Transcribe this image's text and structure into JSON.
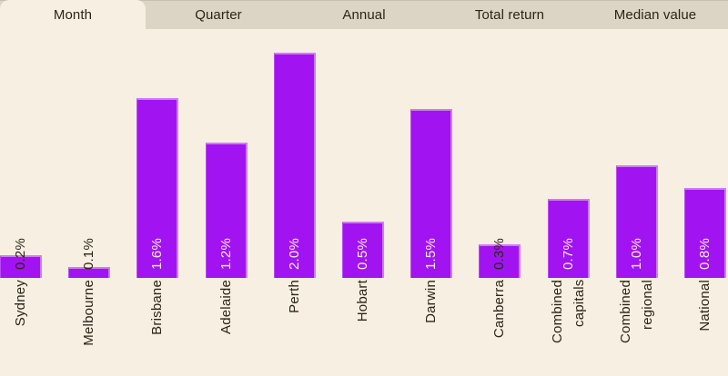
{
  "tabs": {
    "items": [
      {
        "label": "Month",
        "active": true
      },
      {
        "label": "Quarter",
        "active": false
      },
      {
        "label": "Annual",
        "active": false
      },
      {
        "label": "Total return",
        "active": false
      },
      {
        "label": "Median value",
        "active": false
      }
    ]
  },
  "chart_data": {
    "type": "bar",
    "title": "",
    "xlabel": "",
    "ylabel": "",
    "unit": "%",
    "categories": [
      "Sydney",
      "Melbourne",
      "Brisbane",
      "Adelaide",
      "Perth",
      "Hobart",
      "Darwin",
      "Canberra",
      "Combined\ncapitals",
      "Combined\nregional",
      "National"
    ],
    "values": [
      0.2,
      0.1,
      1.6,
      1.2,
      2.0,
      0.5,
      1.5,
      0.3,
      0.7,
      1.0,
      0.8
    ],
    "value_labels": [
      "0.2%",
      "0.1%",
      "1.6%",
      "1.2%",
      "2.0%",
      "0.5%",
      "1.5%",
      "0.3%",
      "0.7%",
      "1.0%",
      "0.8%"
    ],
    "ylim": [
      0,
      2.2
    ],
    "grid": false,
    "legend": false,
    "axes_visible": false,
    "orientation": "vertical",
    "value_label_rotation": -90,
    "category_label_rotation": -90,
    "selected_tab": "Month"
  },
  "colors": {
    "page_bg": "#f7f0e2",
    "tabbar_bg": "#dcd5c6",
    "active_tab_bg": "#f7f0e2",
    "bar_fill": "#a213f1",
    "bar_highlight": "#cf7bf7",
    "bar_highlight_soft": "#bb4af4",
    "label_light": "#f8f1e4",
    "text_dark": "#2c2417",
    "corner_dark": "#221910"
  }
}
